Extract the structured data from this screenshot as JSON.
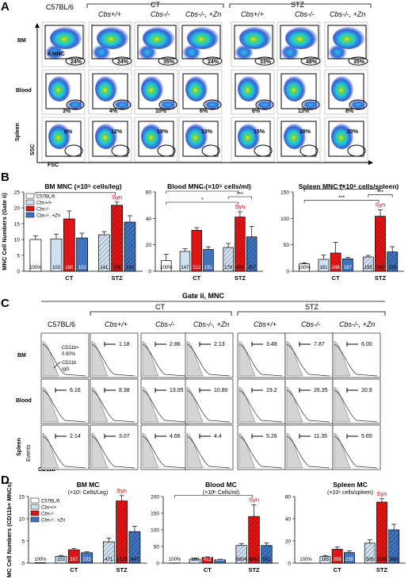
{
  "panel_labels": {
    "a": "A",
    "b": "B",
    "c": "C",
    "d": "D"
  },
  "headers": {
    "c57": "C57BL/6",
    "ct": "CT",
    "stz": "STZ",
    "cbs_wt": "Cbs+/+",
    "cbs_ko": "Cbs-/-",
    "cbs_ko_zn": "Cbs-/-, +Zn"
  },
  "panel_a": {
    "row_labels": [
      "BM",
      "Blood",
      "Spleen"
    ],
    "axis_x": "FSC",
    "axis_y": "SSC",
    "gate_i": "i",
    "gate_ii": "ii MNC",
    "bm_percents": [
      "24%",
      "24%",
      "35%",
      "24%",
      "33%",
      "48%",
      "35%"
    ],
    "blood_percents": [
      "3%",
      "4%",
      "10%",
      "6%",
      "6%",
      "13%",
      "8%"
    ],
    "spleen_percents": [
      "8%",
      "12%",
      "19%",
      "13%",
      "15%",
      "28%",
      "20%"
    ]
  },
  "panel_c": {
    "title": "Gate ii, MNC",
    "row_labels": [
      "BM",
      "Blood",
      "Spleen"
    ],
    "axis_y": "Events",
    "axis_x": "CD11b",
    "legend_pos": "CD11b+",
    "legend_pos_val": "0.90%",
    "legend_iso": "CD11b",
    "legend_iso2": "IgG",
    "bm_values": [
      "1.18",
      "2.86",
      "2.13",
      "3.48",
      "7.87",
      "6.00"
    ],
    "blood_values": [
      "6.16",
      "8.38",
      "13.05",
      "10.80",
      "19.2",
      "26.35",
      "20.9"
    ],
    "spleen_values": [
      "2.14",
      "3.07",
      "4.66",
      "4.4",
      "5.26",
      "11.35",
      "5.65"
    ]
  },
  "colors": {
    "c57": "#ffffff",
    "wt": "#cfe0f0",
    "ko": "#e01414",
    "zn": "#3f73c0",
    "syn": "#d40000"
  },
  "chart_data": [
    {
      "id": "B1",
      "type": "bar",
      "title": "BM MNC (×10⁵ cells/leg)",
      "ylabel": "MNC Cell Numbers (Gate ii)",
      "ylim": [
        0,
        25
      ],
      "yticks": [
        0,
        5,
        10,
        15,
        20,
        25
      ],
      "groups": [
        "",
        "CT",
        "STZ"
      ],
      "legend": [
        "C57BL/6",
        "Cbs+/+",
        "Cbs-/-",
        "Cbs-/-, +Zn"
      ],
      "values": [
        10,
        10.2,
        16.5,
        10.5,
        11.5,
        20.8,
        15.5
      ],
      "errors": [
        1.2,
        1.5,
        2.5,
        1.5,
        1,
        1,
        2
      ],
      "bar_labels": [
        "100%",
        "103",
        "160",
        "103",
        "141",
        "205",
        "150"
      ],
      "annotations": [
        "*",
        "Syn"
      ]
    },
    {
      "id": "B2",
      "type": "bar",
      "title": "Blood MNC (×10⁵ cells/ml)",
      "ylabel": "",
      "ylim": [
        0,
        60
      ],
      "yticks": [
        0,
        20,
        40,
        60
      ],
      "groups": [
        "",
        "CT",
        "STZ"
      ],
      "values": [
        8,
        15,
        31,
        16.5,
        18,
        41,
        26
      ],
      "errors": [
        5,
        2,
        2,
        2,
        3,
        4,
        8
      ],
      "bar_labels": [
        "100%",
        "147",
        "312",
        "191",
        "179",
        "408",
        "257"
      ],
      "annotations": [
        "*",
        "***",
        "***",
        "***",
        "Syn"
      ]
    },
    {
      "id": "B3",
      "type": "bar",
      "title": "Spleen MNC (×10⁶ cells/spleen)",
      "ylabel": "",
      "ylim": [
        0,
        150
      ],
      "yticks": [
        0,
        50,
        100,
        150
      ],
      "groups": [
        "",
        "CT",
        "STZ"
      ],
      "values": [
        14,
        22.5,
        34.5,
        23.5,
        27,
        104,
        36.5
      ],
      "errors": [
        2,
        8,
        20,
        3,
        3,
        12,
        10
      ],
      "bar_labels": [
        "100%",
        "161",
        "248",
        "167",
        "193",
        "740",
        "259"
      ],
      "annotations": [
        "***",
        "***",
        "***",
        "***",
        "***",
        "Syn"
      ]
    },
    {
      "id": "D1",
      "type": "bar",
      "title": "BM MC",
      "subtitle": "(×10⁵ Cells/Leg)",
      "ylabel": "MC Cell Numbers (CD11b+ MNCs)",
      "ylim": [
        0,
        15
      ],
      "yticks": [
        0,
        5,
        10,
        15
      ],
      "groups": [
        "",
        "CT",
        "STZ"
      ],
      "legend": [
        "C57BL/6",
        "Cbs+/+",
        "Cbs-/-",
        "Cbs-/-, +Zn"
      ],
      "values": [
        0.1,
        1.55,
        3.0,
        2.35,
        4.8,
        14.0,
        7.1
      ],
      "errors": [
        0,
        0.2,
        0.3,
        0.2,
        0.8,
        1.2,
        1.2
      ],
      "bar_labels": [
        "100%",
        "153",
        "287",
        "233",
        "471",
        "1229",
        "647"
      ],
      "annotations": [
        "***",
        "***",
        "***",
        "*",
        "***",
        "**",
        "Syn"
      ]
    },
    {
      "id": "D2",
      "type": "bar",
      "title": "Blood MC",
      "subtitle": "(×10⁵ Cells/ml)",
      "ylabel": "",
      "ylim": [
        0,
        200
      ],
      "yticks": [
        0,
        50,
        100,
        150,
        200
      ],
      "groups": [
        "",
        "CT",
        "STZ"
      ],
      "values": [
        0.5,
        12,
        17,
        10,
        53,
        140,
        53
      ],
      "errors": [
        0,
        2,
        2,
        2,
        6,
        35,
        8
      ],
      "bar_labels": [
        "100%",
        "128",
        "412",
        "223",
        "6804",
        "6842",
        "601"
      ],
      "annotations": [
        "*",
        "*",
        "Syn"
      ]
    },
    {
      "id": "D3",
      "type": "bar",
      "title": "Spleen MC",
      "subtitle": "(×10⁶ cells/spleen)",
      "ylabel": "",
      "ylim": [
        0,
        60
      ],
      "yticks": [
        0,
        20,
        40,
        60
      ],
      "groups": [
        "",
        "CT",
        "STZ"
      ],
      "values": [
        0.1,
        6,
        12.5,
        9.5,
        18,
        55,
        30
      ],
      "errors": [
        0,
        1,
        2,
        1.5,
        3,
        3,
        5
      ],
      "bar_labels": [
        "100%",
        "165",
        "398",
        "239",
        "506",
        "1636",
        "868"
      ],
      "annotations": [
        "***",
        "***",
        "***",
        "***",
        "*",
        "***",
        "***",
        "***",
        "Syn"
      ]
    }
  ]
}
